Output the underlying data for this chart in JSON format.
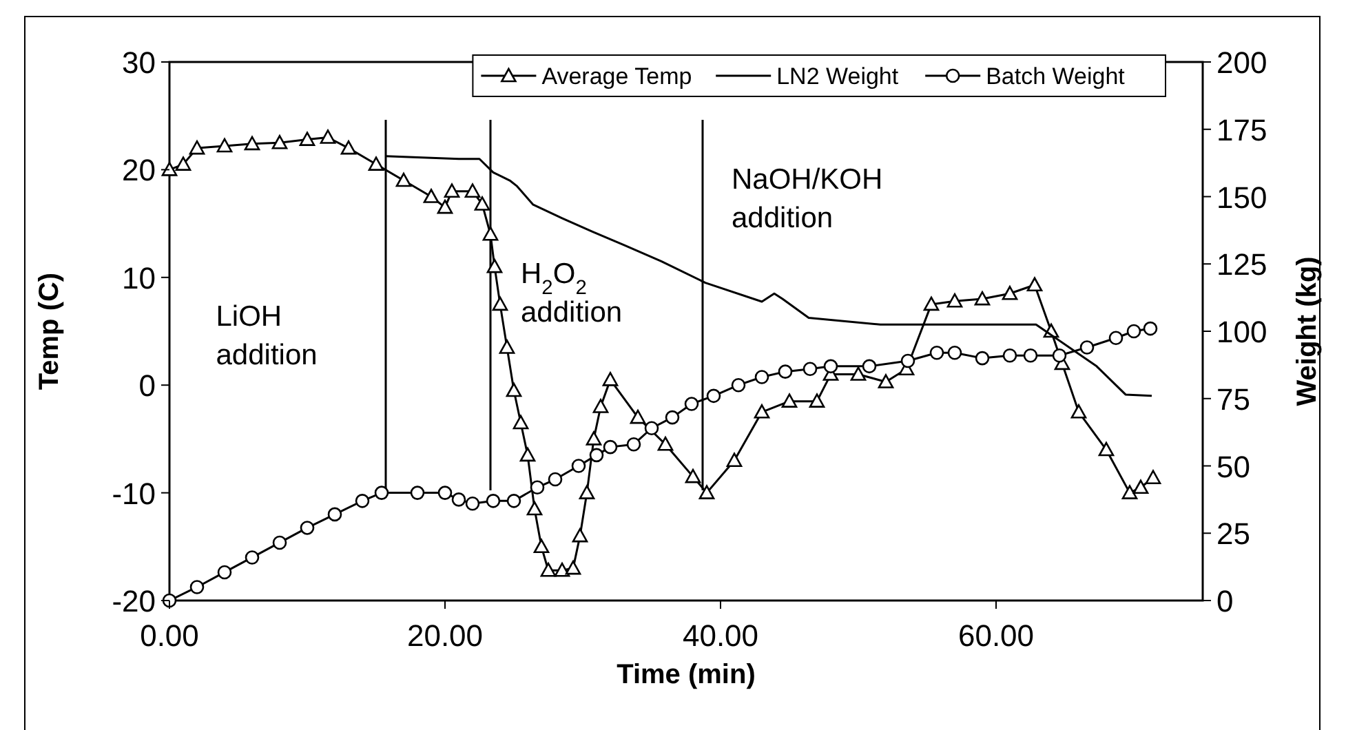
{
  "chart_data": {
    "type": "line",
    "xlabel": "Time (min)",
    "ylabel": "Temp (C)",
    "y2label": "Weight (kg)",
    "xlim": [
      0,
      75
    ],
    "xticks": [
      {
        "value": 0,
        "label": "0.00"
      },
      {
        "value": 20,
        "label": "20.00"
      },
      {
        "value": 40,
        "label": "40.00"
      },
      {
        "value": 60,
        "label": "60.00"
      }
    ],
    "ylim": [
      -20,
      30
    ],
    "yticks": [
      -20,
      -10,
      0,
      10,
      20,
      30
    ],
    "y2lim": [
      0,
      200
    ],
    "y2ticks": [
      0,
      25,
      50,
      75,
      100,
      125,
      150,
      175,
      200
    ],
    "grid": false,
    "legend": "top right",
    "line_style": "solid",
    "series": [
      {
        "name": "Average Temp",
        "color": "#000000",
        "marker": "triangle",
        "x": [
          0,
          1,
          2,
          4,
          6,
          8,
          10,
          11.5,
          13,
          15,
          17,
          19,
          20,
          20.5,
          22,
          22.7,
          23.3,
          23.6,
          24,
          24.5,
          25,
          25.5,
          26,
          26.5,
          27,
          27.5,
          28.5,
          29.3,
          29.8,
          30.3,
          30.8,
          31.3,
          32,
          34,
          36,
          38,
          39,
          41,
          43,
          45,
          47,
          48,
          50,
          52,
          53.5,
          55.3,
          57,
          59,
          61,
          62.8,
          64,
          64.8,
          66,
          68,
          69.7,
          70.5,
          71.4
        ],
        "values": [
          20,
          20.5,
          22,
          22.2,
          22.4,
          22.5,
          22.8,
          23,
          22,
          20.5,
          19,
          17.5,
          16.5,
          18,
          18,
          16.8,
          14,
          11,
          7.5,
          3.5,
          -0.5,
          -3.5,
          -6.5,
          -11.5,
          -15,
          -17.2,
          -17.2,
          -17,
          -14,
          -10,
          -5,
          -2,
          0.5,
          -3,
          -5.5,
          -8.5,
          -10,
          -7,
          -2.5,
          -1.5,
          -1.5,
          1,
          1,
          0.3,
          1.5,
          7.5,
          7.8,
          8,
          8.5,
          9.3,
          5,
          2,
          -2.5,
          -6,
          -10,
          -9.5,
          -8.6
        ]
      },
      {
        "name": "LN2 Weight",
        "color": "#000000",
        "marker": "none",
        "axis": "y2",
        "x": [
          15.7,
          21,
          22.5,
          23.5,
          24.7,
          25.2,
          26.4,
          28.5,
          30.7,
          33,
          35.7,
          38.9,
          43,
          43.9,
          44.5,
          46.4,
          51.6,
          62.9,
          67.3,
          69.4,
          71.3
        ],
        "values": [
          165,
          164,
          164,
          159,
          156,
          154,
          147,
          142,
          137,
          132,
          126,
          118,
          111,
          114,
          112,
          105,
          102.5,
          102.5,
          87,
          76.5,
          76
        ]
      },
      {
        "name": "Batch Weight",
        "color": "#000000",
        "marker": "circle",
        "axis": "y2",
        "x": [
          0,
          2,
          4,
          6,
          8,
          10,
          12,
          14,
          15.4,
          18,
          20,
          21,
          22,
          23.5,
          25,
          26.7,
          28,
          29.7,
          31,
          32,
          33.7,
          35,
          36.5,
          37.9,
          39.5,
          41.3,
          43,
          44.7,
          46.5,
          48,
          50.8,
          53.6,
          55.7,
          57,
          59,
          61,
          62.5,
          64.6,
          66.6,
          68.7,
          70,
          71.2
        ],
        "values": [
          0,
          5,
          10.5,
          16,
          21.5,
          27,
          32,
          37,
          40,
          40,
          40,
          37.5,
          36,
          37,
          37,
          42,
          45,
          50,
          54,
          57,
          58,
          64,
          68,
          73,
          76,
          80,
          83,
          85,
          86,
          87,
          87,
          89,
          92,
          92,
          90,
          91,
          91,
          91,
          94,
          97.5,
          100,
          101
        ]
      }
    ],
    "ref_lines": [
      {
        "axis": "x",
        "value": 15.7,
        "label": null
      },
      {
        "axis": "x",
        "value": 23.3,
        "label": null
      },
      {
        "axis": "x",
        "value": 38.7,
        "label": null
      }
    ],
    "annotations": [
      "LiOH\naddition",
      "H$_{2}$O$_{2}$\naddition",
      "NaOH/KOH\naddition"
    ]
  }
}
